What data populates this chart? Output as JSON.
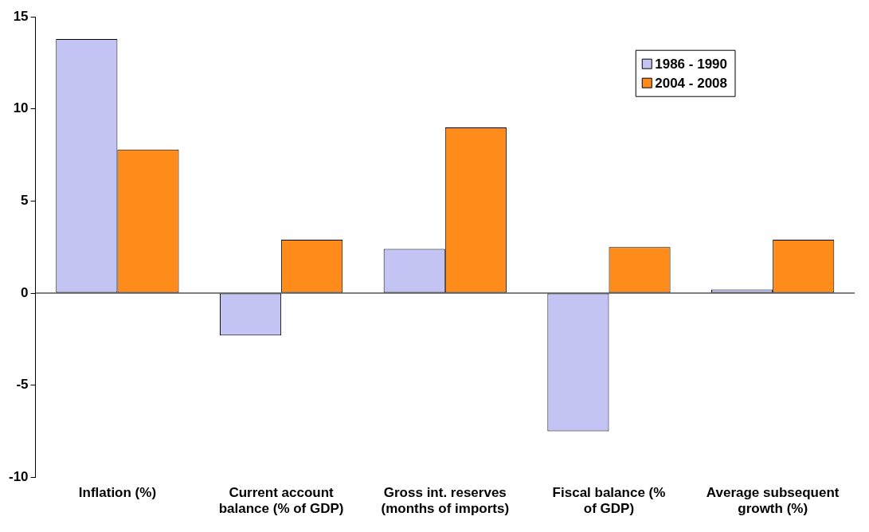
{
  "chart_data": {
    "type": "bar",
    "categories": [
      "Inflation (%)",
      "Current account balance (% of GDP)",
      "Gross int. reserves (months of imports)",
      "Fiscal balance (% of GDP)",
      "Average subsequent growth (%)"
    ],
    "series": [
      {
        "name": "1986 - 1990",
        "color": "#c4c4f4",
        "values": [
          13.8,
          -2.3,
          2.4,
          -7.5,
          0.2
        ]
      },
      {
        "name": "2004 - 2008",
        "color": "#ff8c1a",
        "values": [
          7.8,
          2.9,
          9.0,
          2.5,
          2.9
        ]
      }
    ],
    "ylim": [
      -10,
      15
    ],
    "yticks": [
      -10,
      -5,
      0,
      5,
      10,
      15
    ],
    "grid": false,
    "ref_lines": [
      {
        "axis": "y",
        "value": 0,
        "color": "#000000"
      }
    ],
    "legend": "top right"
  }
}
